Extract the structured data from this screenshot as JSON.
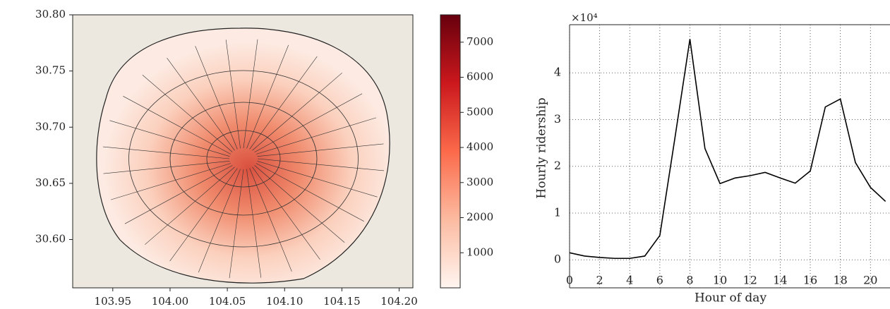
{
  "chart_data": [
    {
      "type": "map",
      "xlim": [
        103.915,
        104.212
      ],
      "xticks": [
        {
          "value": 103.95,
          "label": "103.95"
        },
        {
          "value": 104.0,
          "label": "104.00"
        },
        {
          "value": 104.05,
          "label": "104.05"
        },
        {
          "value": 104.1,
          "label": "104.10"
        },
        {
          "value": 104.15,
          "label": "104.15"
        },
        {
          "value": 104.2,
          "label": "104.20"
        }
      ],
      "ylim": [
        30.557,
        30.8
      ],
      "yticks": [
        {
          "value": 30.6,
          "label": "30.60"
        },
        {
          "value": 30.65,
          "label": "30.65"
        },
        {
          "value": 30.7,
          "label": "30.70"
        },
        {
          "value": 30.75,
          "label": "30.75"
        },
        {
          "value": 30.8,
          "label": "30.80"
        }
      ],
      "colorbar": {
        "lim": [
          0,
          7780
        ],
        "ticks": [
          1000,
          2000,
          3000,
          4000,
          5000,
          6000,
          7000
        ],
        "colors": [
          "#fff5f0",
          "#fcbba1",
          "#fb6a4a",
          "#cb181d",
          "#67000d"
        ]
      }
    },
    {
      "type": "line",
      "x_label": "Hour of day",
      "y_label": "Hourly ridership",
      "y_offset_label": "×10⁴",
      "x": [
        0,
        1,
        2,
        3,
        4,
        5,
        6,
        7,
        8,
        9,
        10,
        11,
        12,
        13,
        14,
        15,
        16,
        17,
        18,
        19,
        20,
        21
      ],
      "series": [
        {
          "color": "#000000",
          "values": [
            0.15,
            0.08,
            0.05,
            0.03,
            0.03,
            0.08,
            0.52,
            2.6,
            4.72,
            2.38,
            1.63,
            1.75,
            1.8,
            1.87,
            1.75,
            1.64,
            1.9,
            3.27,
            3.44,
            2.08,
            1.55,
            1.25
          ]
        }
      ],
      "xlim": [
        0,
        21.3
      ],
      "xticks": [
        0,
        2,
        4,
        6,
        8,
        10,
        12,
        14,
        16,
        18,
        20
      ],
      "ylim": [
        -0.6,
        5.03
      ],
      "yticks": [
        0,
        1,
        2,
        3,
        4
      ],
      "grid": true
    }
  ]
}
